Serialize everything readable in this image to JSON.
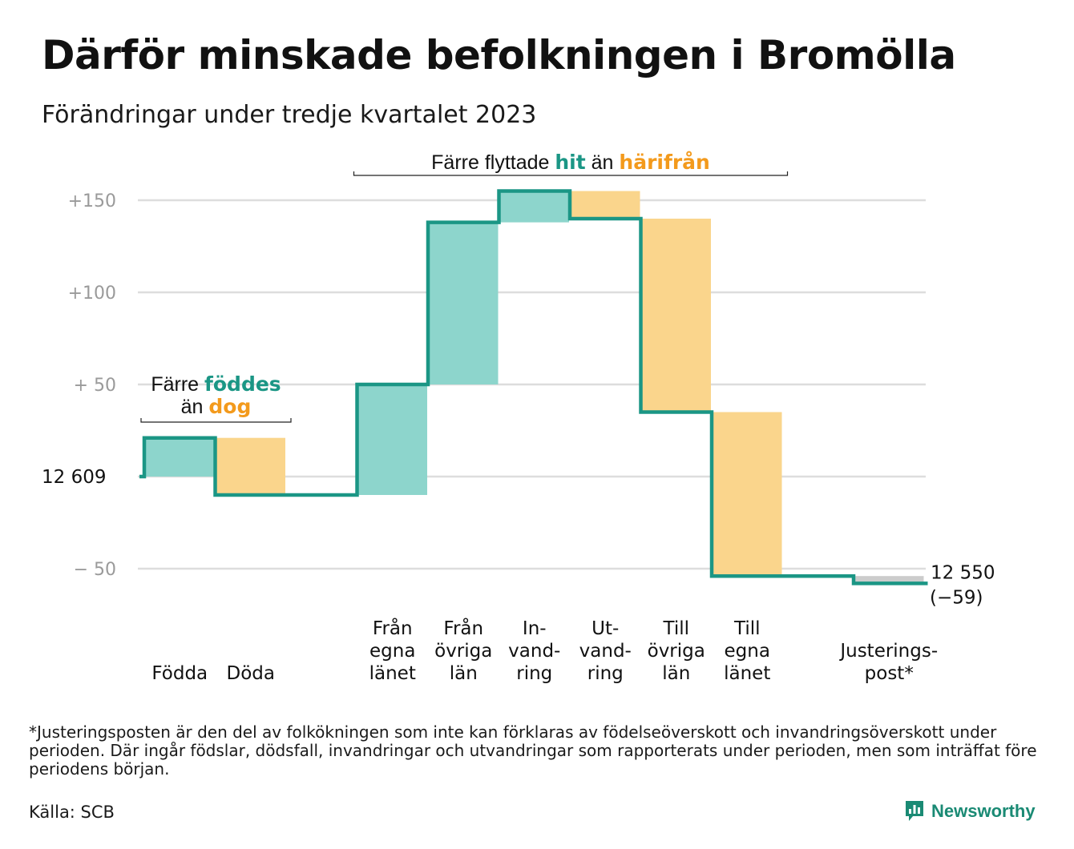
{
  "title": "Därför minskade befolkningen i Bromölla",
  "subtitle": "Förändringar under tredje kvartalet 2023",
  "footnote": "*Justeringsposten är den del av folkökningen som inte kan förklaras av födelseöverskott och invandringsöverskott under perioden. Där ingår födslar, dödsfall, invandringar och utvandringar som rapporterats under perioden, men som inträffat före periodens början.",
  "source": "Källa: SCB",
  "brand": "Newsworthy",
  "colors": {
    "inflow": "#8dd5cc",
    "outflow": "#fad58c",
    "line": "#1b9685",
    "adjust": "#cccccc",
    "teal_text": "#1b9685",
    "orange_text": "#f39a1c",
    "grid": "#dddddd",
    "tick": "#9a9a9a"
  },
  "chart_data": {
    "type": "waterfall",
    "start_value": "12  609",
    "end_value": "12 550",
    "end_change": "(−59)",
    "y_ticks": [
      "+150",
      "+100",
      "+  50",
      "−  50"
    ],
    "ylim": [
      -60,
      165
    ],
    "steps": [
      {
        "label": [
          "Födda"
        ],
        "change": 21,
        "kind": "inflow"
      },
      {
        "label": [
          "Döda"
        ],
        "change": -31,
        "kind": "outflow"
      },
      {
        "label": [],
        "change": 0,
        "kind": "spacer"
      },
      {
        "label": [
          "Från",
          "egna",
          "länet"
        ],
        "change": 60,
        "kind": "inflow"
      },
      {
        "label": [
          "Från",
          "övriga",
          "län"
        ],
        "change": 88,
        "kind": "inflow"
      },
      {
        "label": [
          "In-",
          "vand-",
          "ring"
        ],
        "change": 17,
        "kind": "inflow"
      },
      {
        "label": [
          "Ut-",
          "vand-",
          "ring"
        ],
        "change": -15,
        "kind": "outflow"
      },
      {
        "label": [
          "Till",
          "övriga",
          "län"
        ],
        "change": -105,
        "kind": "outflow"
      },
      {
        "label": [
          "Till",
          "egna",
          "länet"
        ],
        "change": -89,
        "kind": "outflow"
      },
      {
        "label": [],
        "change": 0,
        "kind": "spacer"
      },
      {
        "label": [
          "Justerings-",
          "post*"
        ],
        "change": -4,
        "kind": "adjust"
      }
    ],
    "annotations": [
      {
        "lines": [
          [
            [
              "Färre ",
              "dark"
            ],
            [
              "föddes",
              "teal"
            ]
          ],
          [
            [
              "än ",
              "dark"
            ],
            [
              "dog",
              "orange"
            ]
          ]
        ],
        "from_step": 0,
        "to_step": 1
      },
      {
        "lines": [
          [
            [
              "Färre flyttade ",
              "dark"
            ],
            [
              "hit",
              "teal"
            ],
            [
              " än ",
              "dark"
            ],
            [
              "härifrån",
              "orange"
            ]
          ]
        ],
        "from_step": 3,
        "to_step": 8
      }
    ]
  }
}
